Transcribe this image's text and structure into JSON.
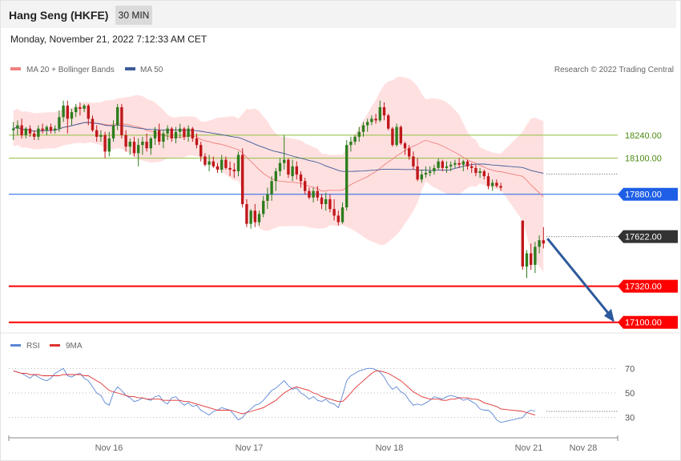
{
  "header": {
    "title": "Hang Seng (HKFE)",
    "interval": "30 MIN"
  },
  "timestamp": "Monday, November 21, 2022 7:12:33 AM CET",
  "legend": {
    "ma20": "MA 20 + Bollinger Bands",
    "ma50": "MA 50",
    "credit": "Research © 2022 Trading Central"
  },
  "rsi_legend": {
    "rsi": "RSI",
    "ma": "9MA"
  },
  "colors": {
    "bull": "#2e7d1e",
    "bear": "#c0181c",
    "bollinger": "#ffd6d6",
    "ma20": "#f08080",
    "ma50": "#3d5a98",
    "support": "#ff0000",
    "pivot": "#1e5fe6",
    "resistance": "#8fbf3f",
    "arrow": "#2d5a9c",
    "rsi": "#5b86d6",
    "rsi_ma": "#e03030"
  },
  "chart_data": [
    {
      "type": "candlestick",
      "title": "Hang Seng (HKFE)",
      "timeframe": "30 MIN",
      "x_ticks": [
        "Nov 16",
        "Nov 17",
        "Nov 18",
        "Nov 21",
        "Nov 28"
      ],
      "ylim": [
        17050,
        18600
      ],
      "indicators": [
        "MA 20 + Bollinger Bands",
        "MA 50"
      ],
      "levels": [
        {
          "value": 18240,
          "label": "18240.00",
          "kind": "resistance"
        },
        {
          "value": 18100,
          "label": "18100.00",
          "kind": "resistance"
        },
        {
          "value": 17880,
          "label": "17880.00",
          "kind": "pivot"
        },
        {
          "value": 17622,
          "label": "17622.00",
          "kind": "last"
        },
        {
          "value": 17320,
          "label": "17320.00",
          "kind": "support"
        },
        {
          "value": 17100,
          "label": "17100.00",
          "kind": "support"
        }
      ],
      "forecast_arrow": {
        "from": 17610,
        "to": 17100
      },
      "candles": [
        [
          18270,
          18320,
          18210,
          18280
        ],
        [
          18280,
          18330,
          18240,
          18300
        ],
        [
          18300,
          18340,
          18220,
          18240
        ],
        [
          18240,
          18290,
          18220,
          18280
        ],
        [
          18280,
          18300,
          18230,
          18250
        ],
        [
          18250,
          18270,
          18210,
          18230
        ],
        [
          18230,
          18300,
          18210,
          18280
        ],
        [
          18280,
          18310,
          18250,
          18270
        ],
        [
          18270,
          18300,
          18240,
          18290
        ],
        [
          18290,
          18310,
          18250,
          18270
        ],
        [
          18270,
          18300,
          18250,
          18280
        ],
        [
          18280,
          18390,
          18260,
          18350
        ],
        [
          18350,
          18450,
          18320,
          18420
        ],
        [
          18420,
          18450,
          18250,
          18340
        ],
        [
          18340,
          18400,
          18300,
          18380
        ],
        [
          18380,
          18430,
          18350,
          18410
        ],
        [
          18410,
          18440,
          18360,
          18400
        ],
        [
          18400,
          18430,
          18380,
          18420
        ],
        [
          18420,
          18430,
          18300,
          18340
        ],
        [
          18340,
          18360,
          18260,
          18270
        ],
        [
          18270,
          18300,
          18200,
          18230
        ],
        [
          18230,
          18270,
          18200,
          18240
        ],
        [
          18240,
          18260,
          18100,
          18140
        ],
        [
          18140,
          18260,
          18110,
          18220
        ],
        [
          18220,
          18330,
          18200,
          18300
        ],
        [
          18300,
          18430,
          18270,
          18410
        ],
        [
          18410,
          18430,
          18220,
          18240
        ],
        [
          18240,
          18270,
          18140,
          18170
        ],
        [
          18170,
          18220,
          18120,
          18200
        ],
        [
          18200,
          18230,
          18110,
          18130
        ],
        [
          18130,
          18220,
          18050,
          18180
        ],
        [
          18180,
          18230,
          18120,
          18200
        ],
        [
          18200,
          18250,
          18140,
          18160
        ],
        [
          18160,
          18230,
          18120,
          18220
        ],
        [
          18220,
          18290,
          18180,
          18270
        ],
        [
          18270,
          18310,
          18180,
          18200
        ],
        [
          18200,
          18270,
          18160,
          18250
        ],
        [
          18250,
          18300,
          18210,
          18280
        ],
        [
          18280,
          18290,
          18200,
          18220
        ],
        [
          18220,
          18290,
          18190,
          18260
        ],
        [
          18260,
          18310,
          18220,
          18280
        ],
        [
          18280,
          18290,
          18210,
          18230
        ],
        [
          18230,
          18300,
          18200,
          18280
        ],
        [
          18280,
          18290,
          18200,
          18220
        ],
        [
          18220,
          18250,
          18160,
          18180
        ],
        [
          18180,
          18200,
          18080,
          18110
        ],
        [
          18110,
          18130,
          18050,
          18060
        ],
        [
          18060,
          18120,
          18020,
          18080
        ],
        [
          18080,
          18110,
          18040,
          18050
        ],
        [
          18050,
          18070,
          18010,
          18030
        ],
        [
          18030,
          18120,
          18010,
          18090
        ],
        [
          18090,
          18110,
          18030,
          18040
        ],
        [
          18040,
          18080,
          17990,
          18030
        ],
        [
          18030,
          18070,
          17980,
          18020
        ],
        [
          18020,
          18140,
          17990,
          18120
        ],
        [
          18120,
          18160,
          17800,
          17820
        ],
        [
          17820,
          17850,
          17680,
          17700
        ],
        [
          17700,
          17790,
          17670,
          17780
        ],
        [
          17780,
          17820,
          17680,
          17710
        ],
        [
          17710,
          17780,
          17690,
          17760
        ],
        [
          17760,
          17870,
          17740,
          17840
        ],
        [
          17840,
          17920,
          17790,
          17880
        ],
        [
          17880,
          17990,
          17840,
          17960
        ],
        [
          17960,
          18040,
          17900,
          18020
        ],
        [
          18020,
          18100,
          17990,
          18070
        ],
        [
          18070,
          18240,
          18030,
          18090
        ],
        [
          18090,
          18100,
          17980,
          18000
        ],
        [
          17990,
          18090,
          17960,
          18050
        ],
        [
          18050,
          18080,
          17970,
          18000
        ],
        [
          18000,
          18020,
          17920,
          17960
        ],
        [
          17960,
          17980,
          17880,
          17900
        ],
        [
          17900,
          17920,
          17850,
          17860
        ],
        [
          17860,
          17920,
          17830,
          17900
        ],
        [
          17900,
          17930,
          17840,
          17860
        ],
        [
          17860,
          17880,
          17790,
          17820
        ],
        [
          17820,
          17890,
          17780,
          17850
        ],
        [
          17850,
          17880,
          17770,
          17790
        ],
        [
          17790,
          17850,
          17720,
          17750
        ],
        [
          17750,
          17780,
          17690,
          17710
        ],
        [
          17710,
          17830,
          17700,
          17800
        ],
        [
          17800,
          18210,
          17780,
          18180
        ],
        [
          18180,
          18230,
          18140,
          18200
        ],
        [
          18200,
          18240,
          18180,
          18230
        ],
        [
          18230,
          18290,
          18200,
          18260
        ],
        [
          18260,
          18320,
          18230,
          18300
        ],
        [
          18300,
          18340,
          18260,
          18320
        ],
        [
          18320,
          18360,
          18300,
          18340
        ],
        [
          18340,
          18370,
          18310,
          18330
        ],
        [
          18330,
          18450,
          18320,
          18410
        ],
        [
          18410,
          18440,
          18330,
          18360
        ],
        [
          18360,
          18370,
          18270,
          18280
        ],
        [
          18280,
          18290,
          18170,
          18180
        ],
        [
          18180,
          18310,
          18170,
          18290
        ],
        [
          18290,
          18300,
          18180,
          18190
        ],
        [
          18190,
          18200,
          18120,
          18160
        ],
        [
          18160,
          18180,
          18090,
          18110
        ],
        [
          18110,
          18140,
          18030,
          18050
        ],
        [
          18050,
          18100,
          17960,
          17970
        ],
        [
          17970,
          18030,
          17950,
          18000
        ],
        [
          18000,
          18050,
          17980,
          18010
        ],
        [
          18010,
          18050,
          17990,
          18020
        ],
        [
          18020,
          18060,
          18000,
          18040
        ],
        [
          18040,
          18100,
          18030,
          18080
        ],
        [
          18080,
          18090,
          18020,
          18040
        ],
        [
          18040,
          18080,
          18010,
          18050
        ],
        [
          18050,
          18080,
          18020,
          18060
        ],
        [
          18060,
          18090,
          18040,
          18070
        ],
        [
          18070,
          18100,
          18040,
          18060
        ],
        [
          18060,
          18090,
          18020,
          18080
        ],
        [
          18080,
          18090,
          18030,
          18050
        ],
        [
          18050,
          18070,
          18010,
          18040
        ],
        [
          18040,
          18060,
          17990,
          18010
        ],
        [
          18010,
          18040,
          17980,
          18020
        ],
        [
          18020,
          18030,
          17970,
          17990
        ],
        [
          17990,
          18010,
          17910,
          17930
        ],
        [
          17930,
          17970,
          17900,
          17950
        ],
        [
          17950,
          17970,
          17920,
          17930
        ],
        [
          17930,
          17950,
          17900,
          17920
        ],
        [
          17720,
          17720,
          17420,
          17440
        ],
        [
          17440,
          17540,
          17370,
          17520
        ],
        [
          17520,
          17580,
          17420,
          17450
        ],
        [
          17450,
          17590,
          17400,
          17560
        ],
        [
          17560,
          17630,
          17520,
          17600
        ],
        [
          17600,
          17680,
          17550,
          17580
        ]
      ]
    },
    {
      "type": "line",
      "title": "RSI",
      "legend": [
        "RSI",
        "9MA"
      ],
      "ylim": [
        20,
        80
      ],
      "y_ticks": [
        "70",
        "50",
        "30"
      ],
      "series": [
        {
          "name": "RSI",
          "values": [
            68,
            67,
            66,
            64,
            62,
            65,
            63,
            61,
            60,
            62,
            66,
            68,
            70,
            64,
            63,
            65,
            66,
            62,
            60,
            55,
            50,
            48,
            42,
            40,
            50,
            55,
            52,
            48,
            46,
            43,
            44,
            46,
            45,
            44,
            47,
            48,
            43,
            41,
            46,
            47,
            43,
            40,
            42,
            39,
            40,
            36,
            34,
            32,
            35,
            36,
            38,
            37,
            36,
            32,
            28,
            30,
            34,
            37,
            40,
            41,
            44,
            48,
            52,
            54,
            57,
            60,
            56,
            53,
            54,
            50,
            48,
            45,
            47,
            44,
            43,
            45,
            42,
            41,
            38,
            48,
            60,
            64,
            66,
            68,
            69,
            70,
            70,
            69,
            67,
            63,
            57,
            53,
            55,
            51,
            49,
            44,
            40,
            41,
            40,
            42,
            44,
            47,
            46,
            45,
            47,
            48,
            47,
            46,
            44,
            45,
            43,
            41,
            37,
            36,
            36,
            33,
            28,
            26,
            30,
            34,
            36,
            35
          ]
        },
        {
          "name": "9MA",
          "values": [
            68,
            67,
            66,
            66,
            65,
            65,
            65,
            64,
            64,
            64,
            64,
            64,
            65,
            65,
            65,
            65,
            65,
            64,
            64,
            62,
            60,
            58,
            55,
            52,
            51,
            50,
            49,
            48,
            47,
            47,
            46,
            46,
            45,
            45,
            45,
            45,
            44,
            44,
            44,
            44,
            44,
            43,
            43,
            42,
            41,
            40,
            39,
            38,
            37,
            36,
            36,
            36,
            36,
            35,
            34,
            33,
            34,
            35,
            36,
            37,
            38,
            40,
            42,
            44,
            47,
            50,
            52,
            54,
            55,
            54,
            53,
            52,
            50,
            49,
            47,
            46,
            45,
            44,
            43,
            43,
            46,
            50,
            54,
            57,
            60,
            63,
            66,
            68,
            68,
            67,
            66,
            64,
            62,
            60,
            57,
            54,
            51,
            49,
            47,
            46,
            45,
            45,
            45,
            44,
            44,
            45,
            45,
            46,
            46,
            46,
            45,
            45,
            44,
            42,
            41,
            40,
            39,
            37,
            35,
            34,
            33,
            32
          ]
        }
      ]
    }
  ]
}
